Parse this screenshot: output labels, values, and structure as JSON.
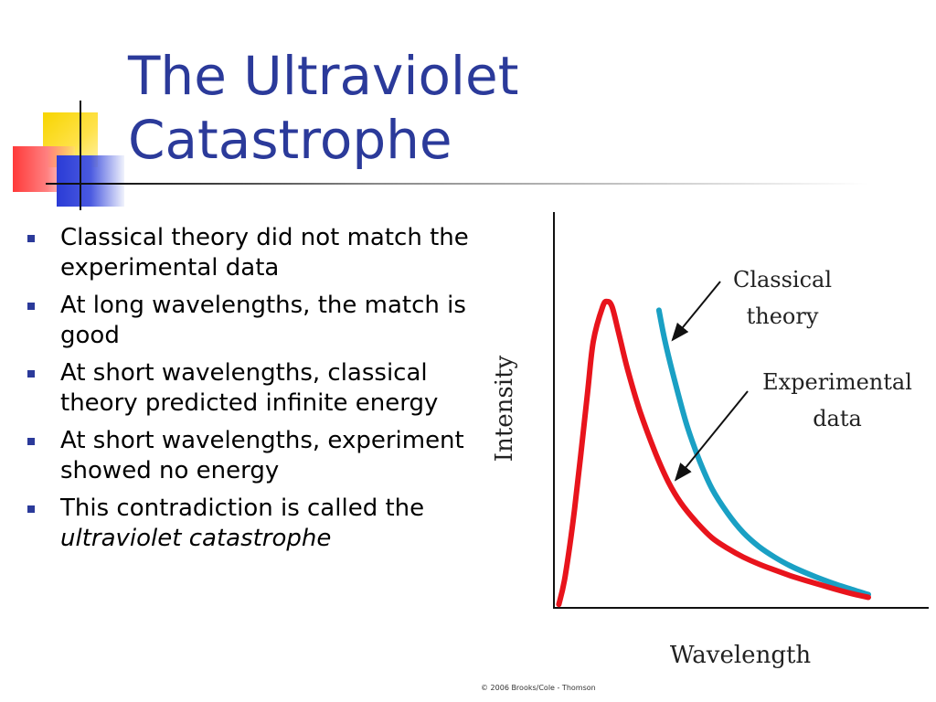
{
  "title": {
    "line1": "The Ultraviolet",
    "line2": "Catastrophe"
  },
  "bullets": [
    {
      "text": "Classical theory did not match the experimental data"
    },
    {
      "text": "At long wavelengths, the match is good"
    },
    {
      "text": "At short wavelengths, classical theory predicted infinite energy"
    },
    {
      "text": "At short wavelengths, experiment showed no energy"
    },
    {
      "text": "This contradiction is called the ",
      "italic": "ultraviolet catastrophe"
    }
  ],
  "chart_data": {
    "type": "line",
    "title": "",
    "xlabel": "Wavelength",
    "ylabel": "Intensity",
    "xlim": [
      0,
      10
    ],
    "ylim": [
      0,
      10
    ],
    "grid": false,
    "series": [
      {
        "name": "Classical theory",
        "color": "#1aa0c4",
        "x": [
          3.3,
          3.5,
          3.8,
          4.2,
          4.6,
          5.0,
          5.5,
          6.0,
          6.5,
          7.0,
          7.5,
          8.0,
          8.5,
          9.0,
          9.5,
          10.0
        ],
        "y": [
          8.5,
          7.6,
          6.5,
          5.2,
          4.2,
          3.4,
          2.7,
          2.15,
          1.75,
          1.45,
          1.2,
          1.0,
          0.82,
          0.66,
          0.52,
          0.38
        ]
      },
      {
        "name": "Experimental data",
        "color": "#e8141c",
        "x": [
          0.1,
          0.3,
          0.6,
          1.0,
          1.2,
          1.5,
          1.65,
          1.8,
          2.0,
          2.3,
          2.7,
          3.2,
          3.6,
          4.0,
          4.5,
          5.0,
          5.5,
          6.0,
          6.5,
          7.0,
          7.5,
          8.0,
          8.5,
          9.0,
          9.5,
          10.0
        ],
        "y": [
          0.1,
          0.9,
          2.8,
          6.0,
          7.6,
          8.6,
          8.75,
          8.6,
          7.9,
          6.8,
          5.6,
          4.4,
          3.6,
          3.0,
          2.45,
          2.0,
          1.7,
          1.45,
          1.25,
          1.08,
          0.92,
          0.78,
          0.65,
          0.52,
          0.4,
          0.3
        ]
      }
    ],
    "annotations": [
      {
        "label_lines": [
          "Classical",
          "theory"
        ],
        "target_series": "Classical theory"
      },
      {
        "label_lines": [
          "Experimental",
          "data"
        ],
        "target_series": "Experimental data"
      }
    ]
  },
  "copyright": "© 2006 Brooks/Cole - Thomson"
}
